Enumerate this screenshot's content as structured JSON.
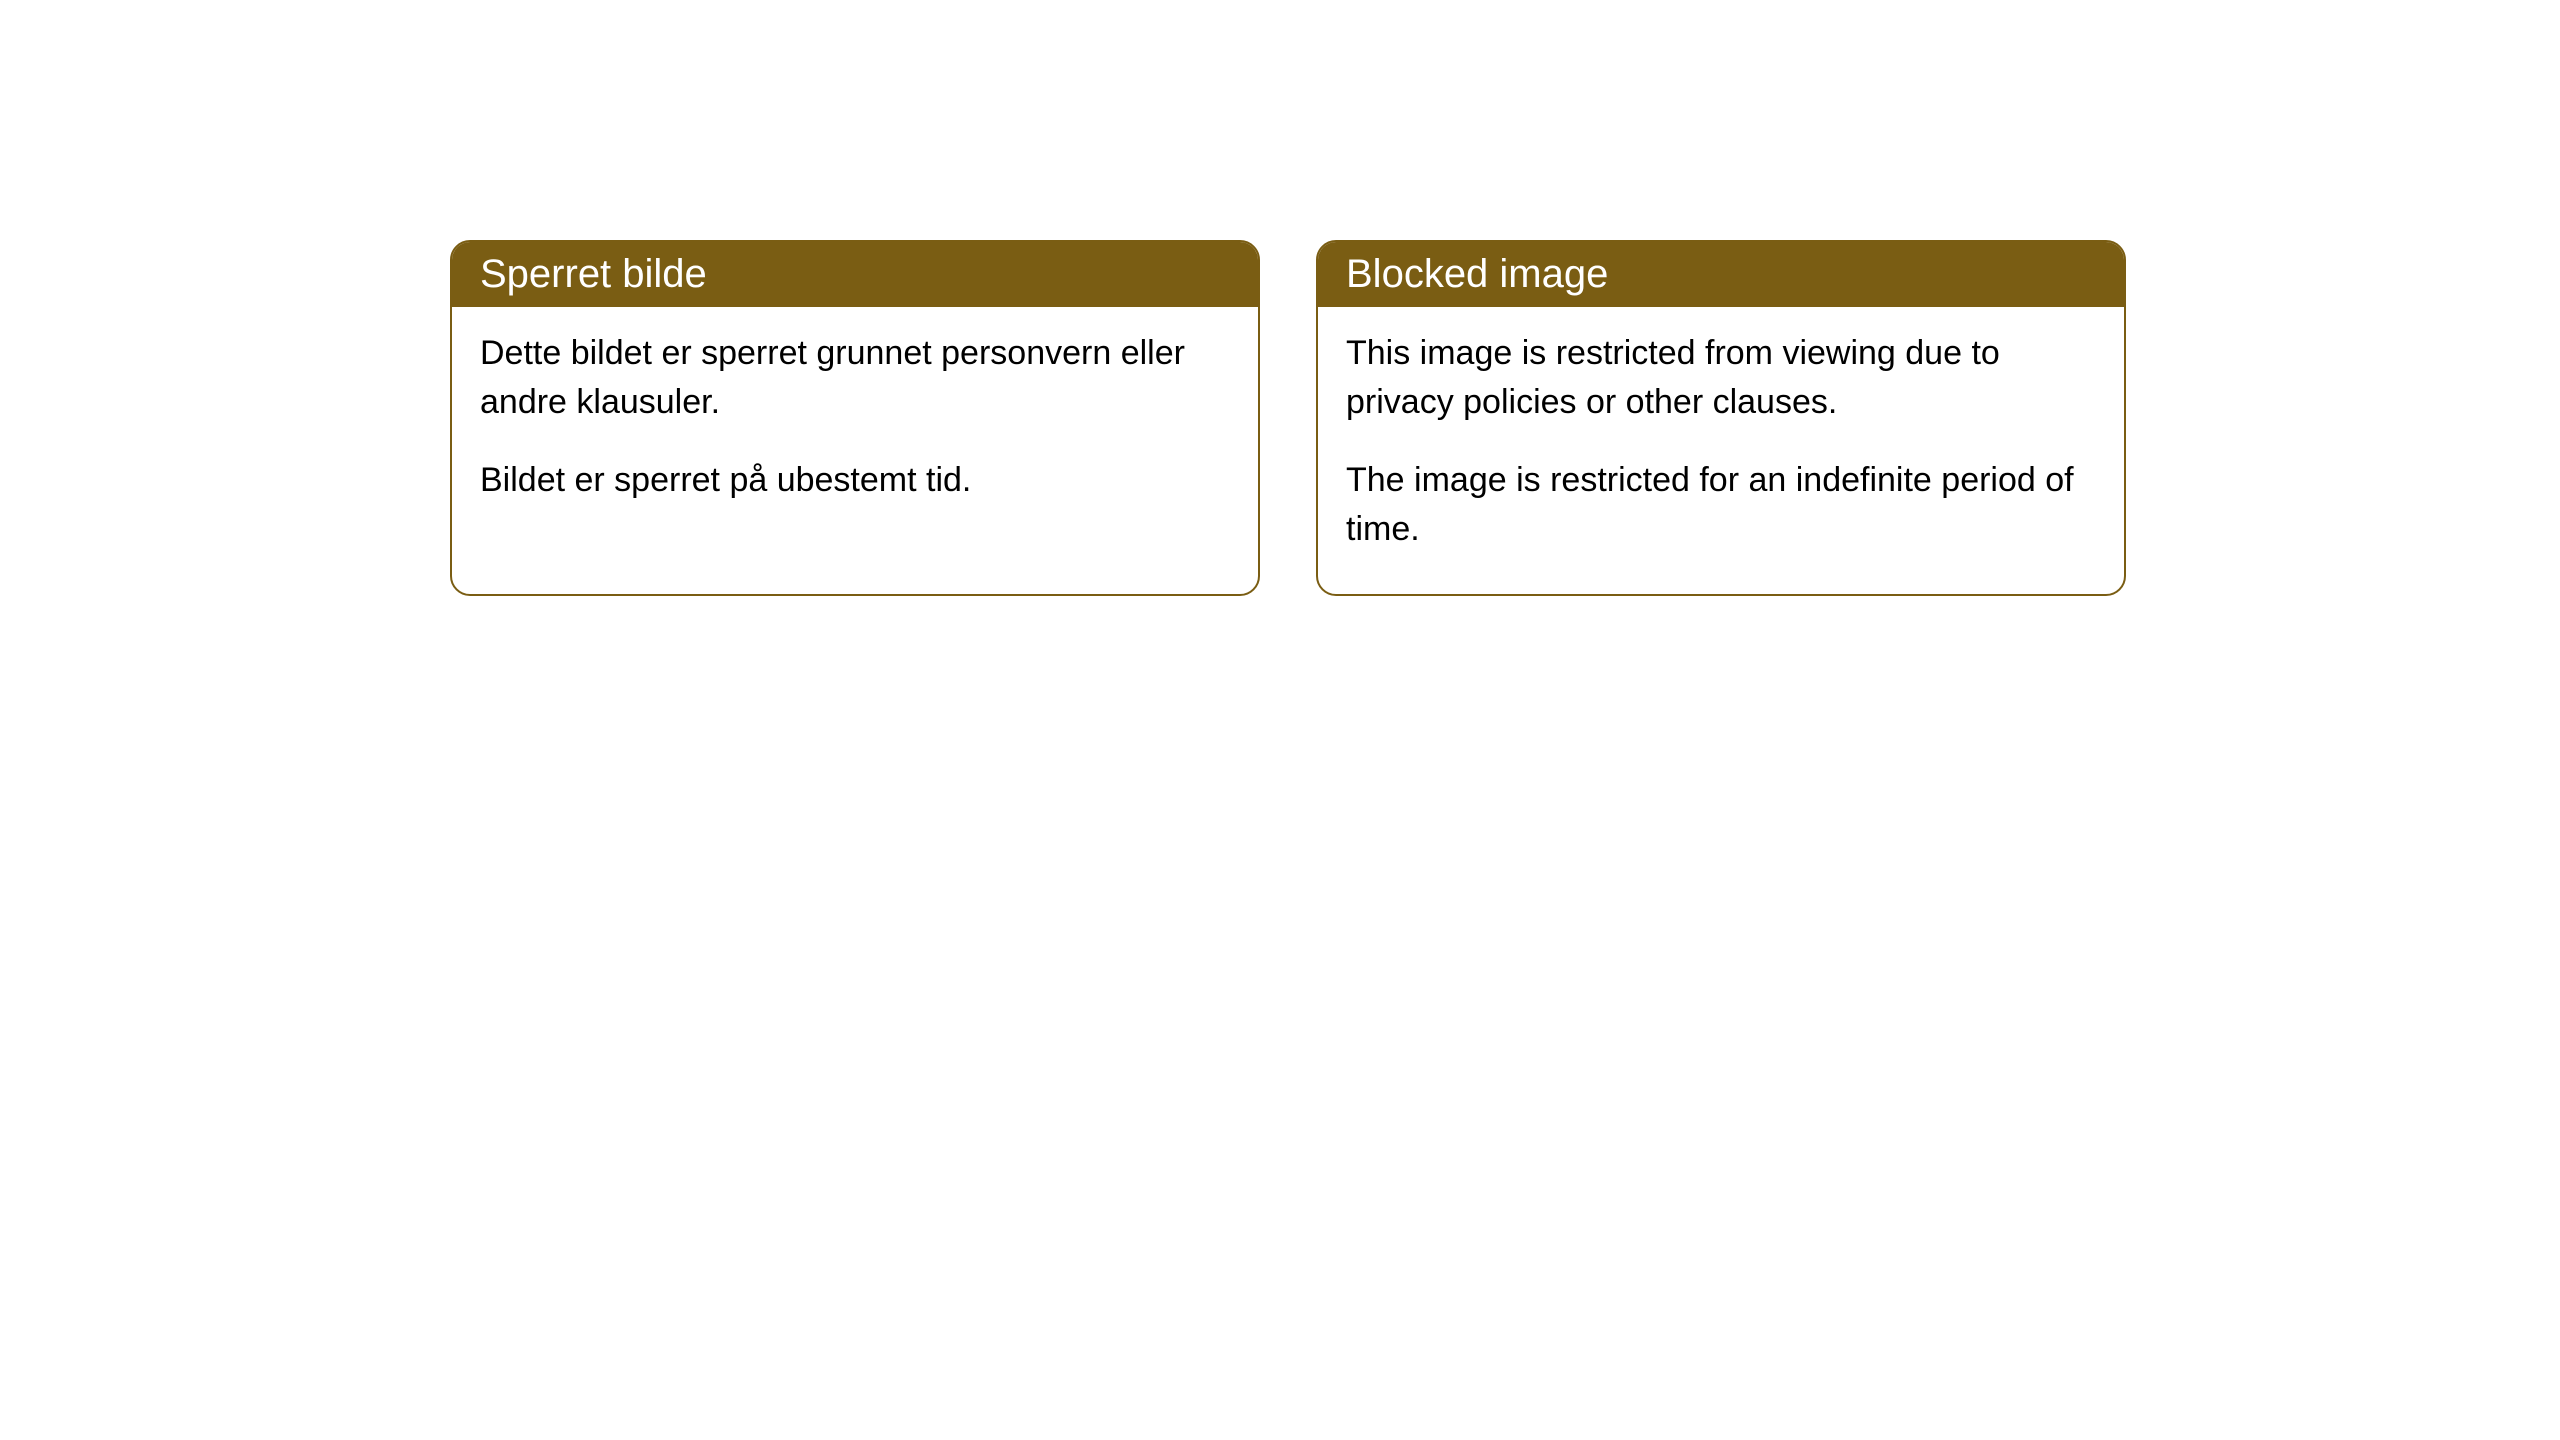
{
  "cards": [
    {
      "title": "Sperret bilde",
      "paragraph1": "Dette bildet er sperret grunnet personvern eller andre klausuler.",
      "paragraph2": "Bildet er sperret på ubestemt tid."
    },
    {
      "title": "Blocked image",
      "paragraph1": "This image is restricted from viewing due to privacy policies or other clauses.",
      "paragraph2": "The image is restricted for an indefinite period of time."
    }
  ],
  "styling": {
    "header_background": "#7a5d13",
    "header_text_color": "#ffffff",
    "border_color": "#7a5d13",
    "card_background": "#ffffff",
    "body_text_color": "#000000",
    "page_background": "#ffffff",
    "border_radius": 20,
    "title_fontsize": 40,
    "body_fontsize": 34
  }
}
